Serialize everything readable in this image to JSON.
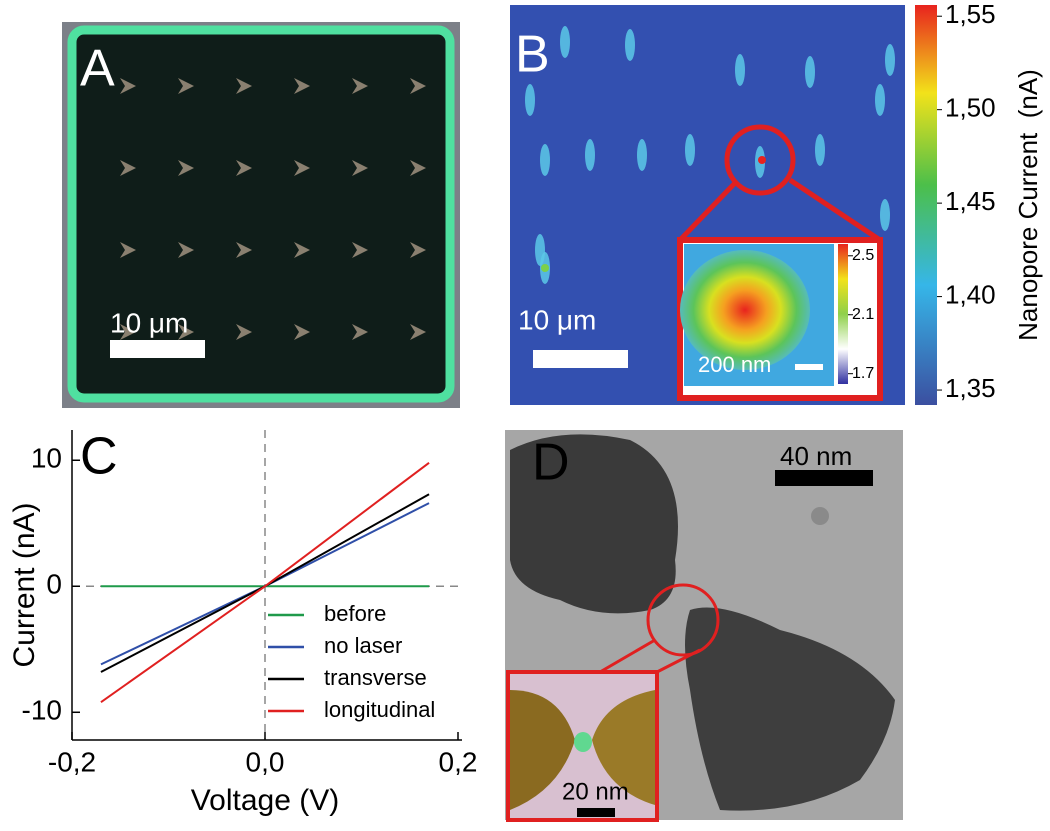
{
  "panels": {
    "a": {
      "label": "A",
      "scale_bar": "10 μm"
    },
    "b": {
      "label": "B",
      "scale_bar": "10 μm",
      "inset_scale_bar": "200 nm",
      "colorbar": {
        "label": "Nanopore Current  (nA)",
        "lim": [
          1.342,
          1.556
        ],
        "ticks": [
          {
            "value": 1.55,
            "label": "1,55"
          },
          {
            "value": 1.5,
            "label": "1,50"
          },
          {
            "value": 1.45,
            "label": "1,45"
          },
          {
            "value": 1.4,
            "label": "1,40"
          },
          {
            "value": 1.35,
            "label": "1,35"
          }
        ]
      },
      "inset_colorbar": {
        "lim": [
          1.63,
          2.58
        ],
        "ticks": [
          2.5,
          2.1,
          1.7
        ]
      }
    },
    "d": {
      "label": "D",
      "scale_bar": "40 nm",
      "inset_scale_bar": "20 nm"
    }
  },
  "chart_data": {
    "type": "line",
    "label": "C",
    "xlabel": "Voltage (V)",
    "ylabel": "Current (nA)",
    "x": [
      -0.17,
      0,
      0.17
    ],
    "series": [
      {
        "name": "before",
        "color": "#1f9a4a",
        "values": [
          0,
          0,
          0
        ]
      },
      {
        "name": "no laser",
        "color": "#2f4fa8",
        "values": [
          -6.2,
          0,
          6.6
        ]
      },
      {
        "name": "transverse",
        "color": "#000000",
        "values": [
          -6.8,
          0,
          7.3
        ]
      },
      {
        "name": "longitudinal",
        "color": "#e02020",
        "values": [
          -9.2,
          0,
          9.8
        ]
      }
    ],
    "xlim": [
      -0.2,
      0.2
    ],
    "ylim": [
      -12.2,
      12.4
    ],
    "xticks": [
      {
        "value": -0.2,
        "label": "-0,2"
      },
      {
        "value": 0,
        "label": "0,0"
      },
      {
        "value": 0.2,
        "label": "0,2"
      }
    ],
    "yticks": [
      -10,
      0,
      10
    ],
    "legend": "lower right",
    "zero_lines": true
  }
}
